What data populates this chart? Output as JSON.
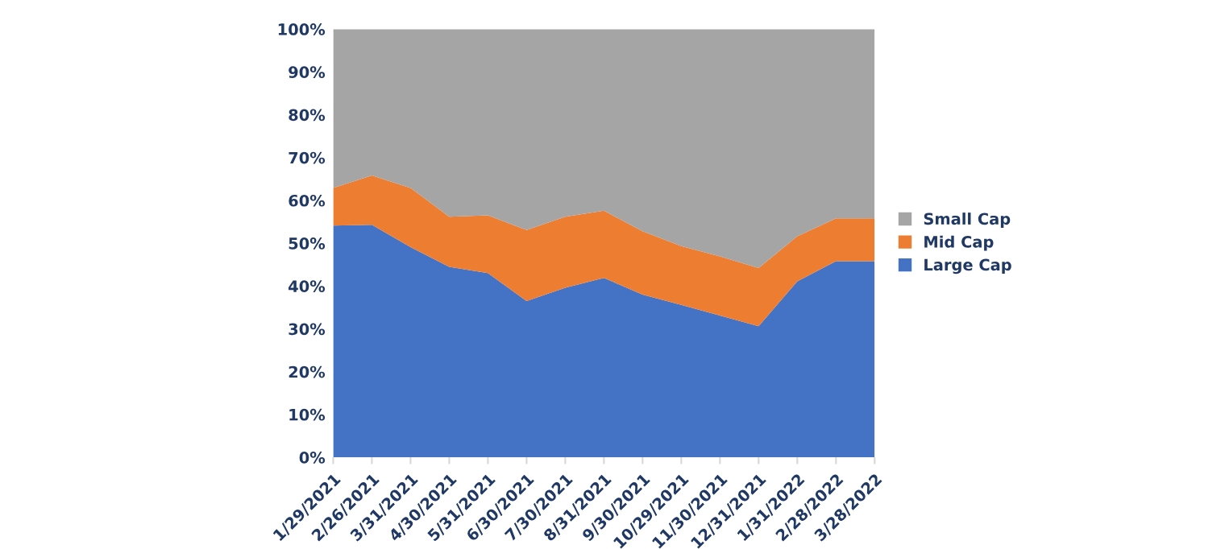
{
  "chart_data": {
    "type": "area",
    "stacked": true,
    "categories": [
      "1/29/2021",
      "2/26/2021",
      "3/31/2021",
      "4/30/2021",
      "5/31/2021",
      "6/30/2021",
      "7/30/2021",
      "8/31/2021",
      "9/30/2021",
      "10/29/2021",
      "11/30/2021",
      "12/31/2021",
      "1/31/2022",
      "2/28/2022",
      "3/28/2022"
    ],
    "series": [
      {
        "name": "Large Cap",
        "color": "#4472c4",
        "values": [
          54.1,
          54.3,
          49.1,
          44.5,
          43.0,
          36.5,
          39.6,
          41.9,
          38.0,
          35.6,
          33.1,
          30.6,
          41.1,
          45.8,
          45.8
        ]
      },
      {
        "name": "Mid Cap",
        "color": "#ed7d31",
        "values": [
          8.8,
          11.5,
          13.8,
          11.7,
          13.5,
          16.6,
          16.6,
          15.7,
          14.8,
          13.7,
          13.8,
          13.6,
          10.5,
          10.0,
          10.0
        ]
      },
      {
        "name": "Small Cap",
        "color": "#a5a5a5",
        "values": [
          37.1,
          34.2,
          37.1,
          43.8,
          43.5,
          46.9,
          43.8,
          42.4,
          47.2,
          50.7,
          53.1,
          55.8,
          48.4,
          44.2,
          44.2
        ]
      }
    ],
    "ylim": [
      0,
      100
    ],
    "yticks": [
      {
        "value": 0,
        "label": "0%"
      },
      {
        "value": 10,
        "label": "10%"
      },
      {
        "value": 20,
        "label": "20%"
      },
      {
        "value": 30,
        "label": "30%"
      },
      {
        "value": 40,
        "label": "40%"
      },
      {
        "value": 50,
        "label": "50%"
      },
      {
        "value": 60,
        "label": "60%"
      },
      {
        "value": 70,
        "label": "70%"
      },
      {
        "value": 80,
        "label": "80%"
      },
      {
        "value": 90,
        "label": "90%"
      },
      {
        "value": 100,
        "label": "100%"
      }
    ],
    "grid": false,
    "legend": "right"
  }
}
